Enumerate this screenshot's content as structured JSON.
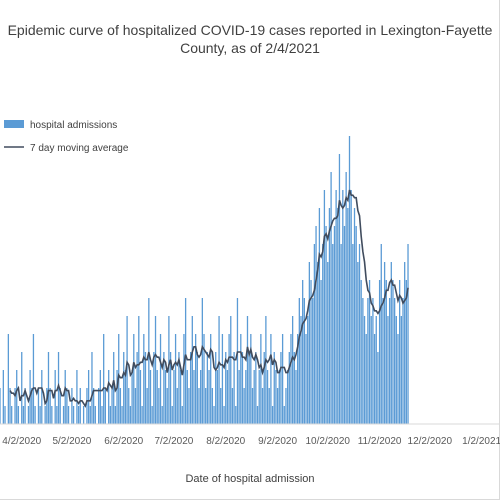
{
  "chart_data": {
    "type": "bar",
    "title_line_1": "Epidemic curve of hospitalized COVID-19 cases reported in Lexington-Fayette",
    "title_line_2": "County, as of 2/4/2021",
    "xlabel": "Date of hospital admission",
    "ylabel": "",
    "x_start": "2020-03-20",
    "x_end": "2021-02-04",
    "x_visible_end": "2021-01-13",
    "ylim": [
      0,
      18
    ],
    "grid": false,
    "legend_position": "top-left",
    "x_tick_labels": [
      {
        "date": "2020-04-02",
        "label": "4/2/2020"
      },
      {
        "date": "2020-05-02",
        "label": "5/2/2020"
      },
      {
        "date": "2020-06-02",
        "label": "6/2/2020"
      },
      {
        "date": "2020-07-02",
        "label": "7/2/2020"
      },
      {
        "date": "2020-08-02",
        "label": "8/2/2020"
      },
      {
        "date": "2020-09-02",
        "label": "9/2/2020"
      },
      {
        "date": "2020-10-02",
        "label": "10/2/2020"
      },
      {
        "date": "2020-11-02",
        "label": "11/2/2020"
      },
      {
        "date": "2020-12-02",
        "label": "12/2/2020"
      },
      {
        "date": "2021-01-02",
        "label": "1/2/2021"
      }
    ],
    "series": [
      {
        "name": "hospital admissions",
        "type": "bar",
        "color": "#5b9bd5",
        "values": [
          2,
          0,
          3,
          1,
          0,
          5,
          2,
          1,
          0,
          2,
          3,
          1,
          0,
          4,
          1,
          2,
          0,
          1,
          3,
          2,
          5,
          1,
          0,
          2,
          1,
          3,
          0,
          1,
          2,
          4,
          2,
          1,
          0,
          3,
          1,
          4,
          2,
          0,
          1,
          3,
          2,
          1,
          0,
          2,
          1,
          0,
          3,
          1,
          2,
          0,
          1,
          0,
          2,
          3,
          1,
          4,
          2,
          1,
          0,
          2,
          3,
          1,
          5,
          2,
          0,
          3,
          1,
          2,
          4,
          1,
          3,
          5,
          2,
          1,
          4,
          3,
          6,
          2,
          1,
          3,
          5,
          2,
          4,
          6,
          3,
          1,
          5,
          4,
          2,
          7,
          3,
          1,
          4,
          6,
          3,
          2,
          5,
          1,
          4,
          3,
          2,
          6,
          4,
          1,
          3,
          5,
          2,
          4,
          3,
          1,
          5,
          7,
          3,
          2,
          4,
          6,
          3,
          5,
          4,
          2,
          3,
          7,
          5,
          2,
          4,
          3,
          5,
          2,
          1,
          4,
          3,
          6,
          2,
          5,
          1,
          4,
          3,
          5,
          6,
          2,
          4,
          1,
          7,
          3,
          5,
          4,
          2,
          3,
          6,
          4,
          5,
          2,
          3,
          4,
          1,
          3,
          5,
          2,
          4,
          6,
          3,
          2,
          5,
          1,
          4,
          3,
          2,
          3,
          4,
          5,
          1,
          2,
          3,
          4,
          5,
          6,
          4,
          3,
          5,
          7,
          6,
          8,
          7,
          5,
          6,
          9,
          8,
          7,
          10,
          11,
          9,
          12,
          8,
          10,
          13,
          11,
          9,
          12,
          14,
          10,
          11,
          13,
          12,
          15,
          10,
          13,
          11,
          14,
          12,
          16,
          13,
          10,
          12,
          11,
          9,
          10,
          8,
          7,
          6,
          5,
          7,
          8,
          6,
          7,
          5,
          6,
          4,
          8,
          10,
          7,
          9,
          8,
          6,
          7,
          9,
          8,
          7,
          6,
          5,
          8,
          6,
          7,
          9,
          8,
          10
        ]
      },
      {
        "name": "7 day moving average",
        "type": "line",
        "color": "#404c5e"
      }
    ]
  }
}
